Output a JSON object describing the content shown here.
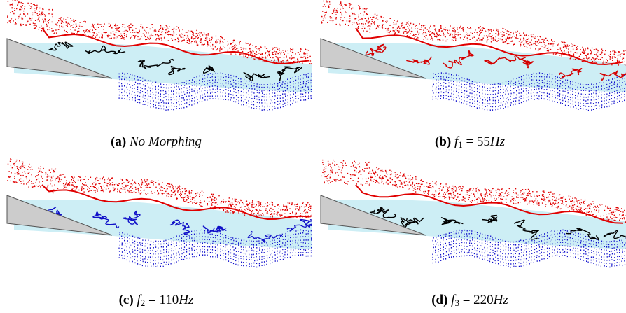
{
  "figure": {
    "panels": [
      {
        "tag": "(a)",
        "caption": "No Morphing",
        "vortex_color": "#000000",
        "seed": 11
      },
      {
        "tag": "(b)",
        "var": "f",
        "sub": "1",
        "eq": " = ",
        "value": "55",
        "unit": "Hz",
        "vortex_color": "#d40000",
        "seed": 23
      },
      {
        "tag": "(c)",
        "var": "f",
        "sub": "2",
        "eq": " = ",
        "value": "110",
        "unit": "Hz",
        "vortex_color": "#1010c8",
        "seed": 37
      },
      {
        "tag": "(d)",
        "var": "f",
        "sub": "3",
        "eq": " = ",
        "value": "220",
        "unit": "Hz",
        "vortex_color": "#000000",
        "seed": 53
      }
    ],
    "colors": {
      "upper_particles": "#e00000",
      "lower_particles": "#1010cc",
      "wake_fill": "#cdeef5",
      "airfoil_fill": "#cccccc",
      "airfoil_edge": "#555555"
    }
  }
}
